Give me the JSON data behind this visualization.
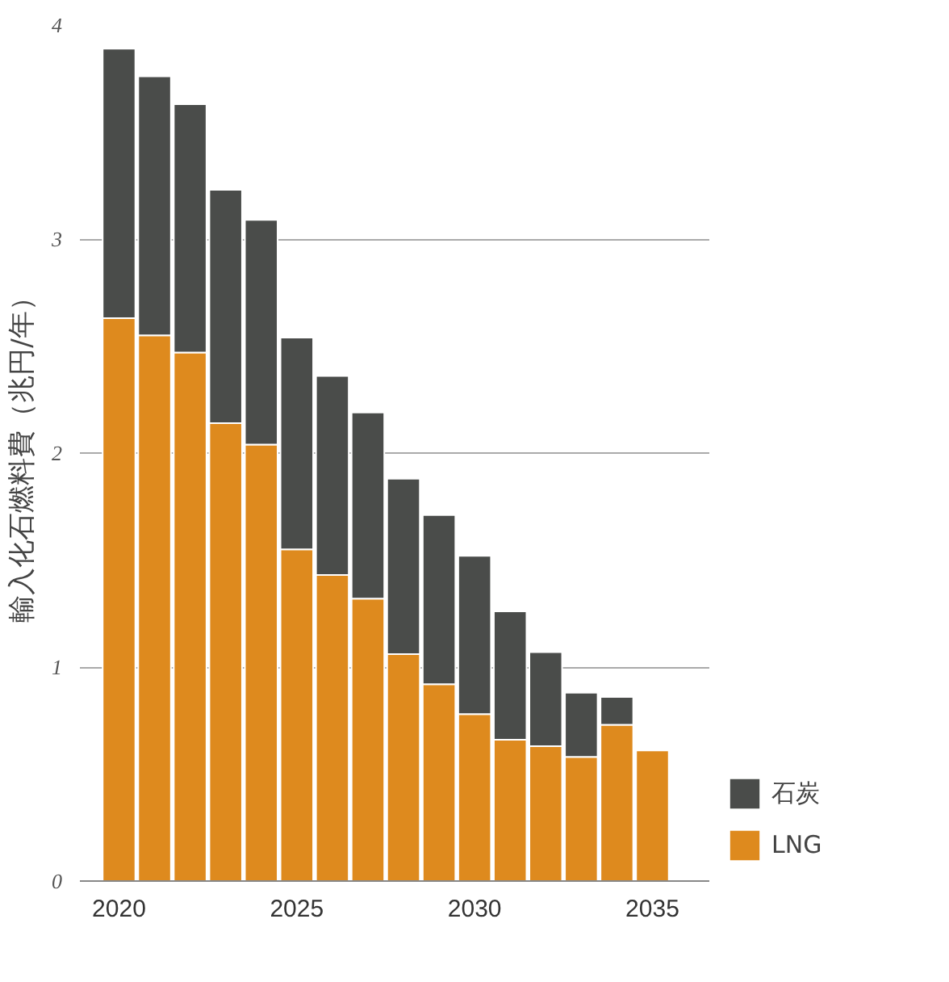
{
  "chart_data": {
    "type": "bar",
    "stacked": true,
    "ylabel": "輸入化石燃料費（兆円/年）",
    "x": [
      2020,
      2021,
      2022,
      2023,
      2024,
      2025,
      2026,
      2027,
      2028,
      2029,
      2030,
      2031,
      2032,
      2033,
      2034,
      2035
    ],
    "xlim": [
      2018.9,
      2036.6
    ],
    "xticks": [
      2020,
      2025,
      2030,
      2035
    ],
    "ylim": [
      0,
      4
    ],
    "yticks": [
      0,
      1,
      2,
      3,
      4
    ],
    "grid": "y",
    "legend": "bottom right",
    "series": [
      {
        "name": "LNG",
        "color": "#de8a1e",
        "values": [
          2.63,
          2.55,
          2.47,
          2.14,
          2.04,
          1.55,
          1.43,
          1.32,
          1.06,
          0.92,
          0.78,
          0.66,
          0.63,
          0.58,
          0.73,
          0.61
        ]
      },
      {
        "name": "石炭",
        "color": "#4a4c4a",
        "values": [
          1.26,
          1.21,
          1.16,
          1.09,
          1.05,
          0.99,
          0.93,
          0.87,
          0.82,
          0.79,
          0.74,
          0.6,
          0.44,
          0.3,
          0.13,
          null
        ]
      }
    ]
  }
}
